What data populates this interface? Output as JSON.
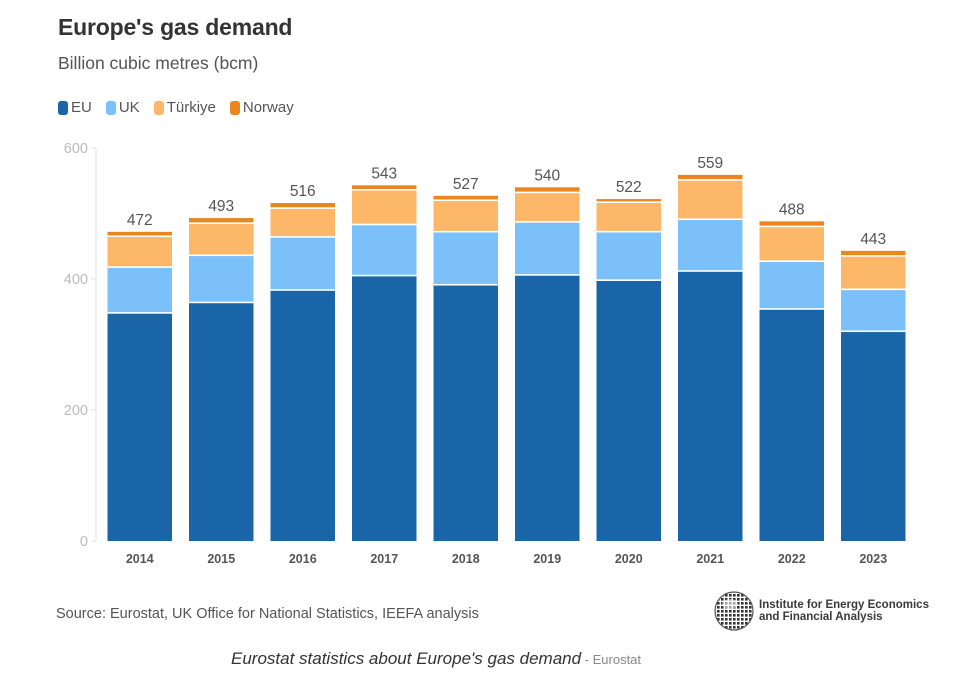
{
  "header": {
    "title": "Europe's gas demand",
    "subtitle": "Billion cubic metres (bcm)"
  },
  "legend": [
    {
      "label": "EU",
      "color": "#1a65a8"
    },
    {
      "label": "UK",
      "color": "#7cc0fa"
    },
    {
      "label": "Türkiye",
      "color": "#fdb768"
    },
    {
      "label": "Norway",
      "color": "#e9861f"
    }
  ],
  "chart_data": {
    "type": "bar",
    "stacked": true,
    "title": "Europe's gas demand",
    "subtitle": "Billion cubic metres (bcm)",
    "xlabel": "",
    "ylabel": "",
    "ylim": [
      0,
      600
    ],
    "yticks": [
      0,
      200,
      400,
      600
    ],
    "grid": false,
    "legend_position": "top-left",
    "categories": [
      "2014",
      "2015",
      "2016",
      "2017",
      "2018",
      "2019",
      "2020",
      "2021",
      "2022",
      "2023"
    ],
    "series": [
      {
        "name": "EU",
        "color": "#1a65a8",
        "values": [
          347,
          363,
          382,
          404,
          390,
          405,
          397,
          411,
          353,
          319
        ]
      },
      {
        "name": "UK",
        "color": "#7cc0fa",
        "values": [
          70,
          72,
          81,
          78,
          81,
          81,
          74,
          79,
          73,
          64
        ]
      },
      {
        "name": "Türkiye",
        "color": "#fdb768",
        "values": [
          47,
          49,
          44,
          53,
          48,
          45,
          45,
          60,
          53,
          51
        ]
      },
      {
        "name": "Norway",
        "color": "#e9861f",
        "values": [
          8,
          9,
          9,
          8,
          8,
          9,
          6,
          9,
          9,
          9
        ]
      }
    ],
    "totals": [
      472,
      493,
      516,
      543,
      527,
      540,
      522,
      559,
      488,
      443
    ]
  },
  "footer": {
    "source": "Source: Eurostat, UK Office for National Statistics, IEEFA analysis",
    "logo_line1": "Institute for Energy Economics",
    "logo_line2": "and Financial Analysis",
    "caption": "Eurostat statistics about Europe's gas demand",
    "caption_credit": " - Eurostat"
  }
}
